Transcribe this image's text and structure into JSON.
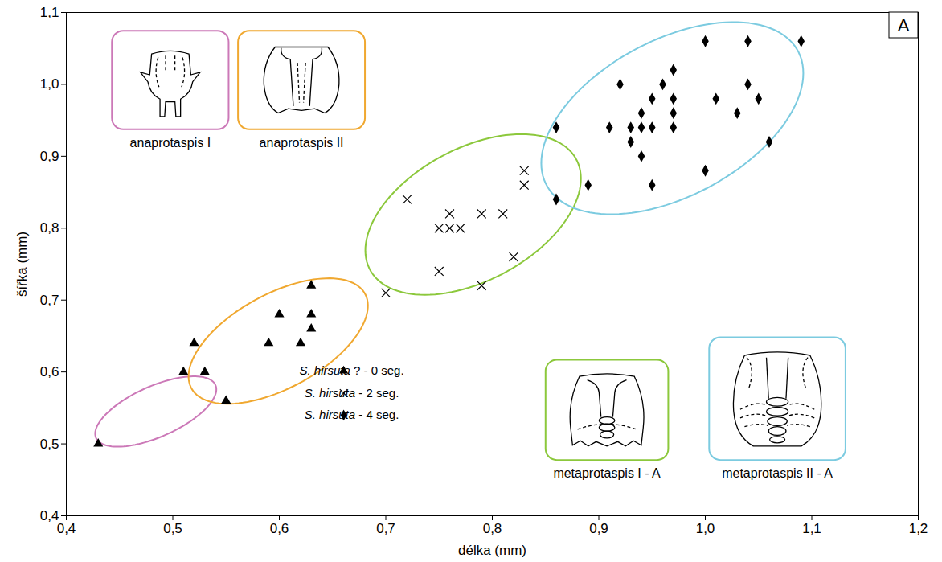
{
  "chart_data": {
    "type": "scatter",
    "x_label": "délka (mm)",
    "y_label": "šířka (mm)",
    "panel_label": "A",
    "xlim": [
      0.4,
      1.2
    ],
    "ylim": [
      0.4,
      1.1
    ],
    "xticks": [
      {
        "value": 0.4,
        "label": "0,4"
      },
      {
        "value": 0.5,
        "label": "0,5"
      },
      {
        "value": 0.6,
        "label": "0,6"
      },
      {
        "value": 0.7,
        "label": "0,7"
      },
      {
        "value": 0.8,
        "label": "0,8"
      },
      {
        "value": 0.9,
        "label": "0,9"
      },
      {
        "value": 1.0,
        "label": "1,0"
      },
      {
        "value": 1.1,
        "label": "1,1"
      },
      {
        "value": 1.2,
        "label": "1,2"
      }
    ],
    "yticks": [
      {
        "value": 0.4,
        "label": "0,4"
      },
      {
        "value": 0.5,
        "label": "0,5"
      },
      {
        "value": 0.6,
        "label": "0,6"
      },
      {
        "value": 0.7,
        "label": "0,7"
      },
      {
        "value": 0.8,
        "label": "0,8"
      },
      {
        "value": 0.9,
        "label": "0,9"
      },
      {
        "value": 1.0,
        "label": "1,0"
      },
      {
        "value": 1.1,
        "label": "1,1"
      }
    ],
    "grid": false,
    "legend": "bottom",
    "series": [
      {
        "name": "S. hirsuta ? - 0 seg.",
        "color": "#000000",
        "marker": "triangle",
        "x": [
          0.43,
          0.51,
          0.52,
          0.53,
          0.55,
          0.59,
          0.6,
          0.62,
          0.63,
          0.63,
          0.63
        ],
        "y": [
          0.5,
          0.6,
          0.64,
          0.6,
          0.56,
          0.64,
          0.68,
          0.64,
          0.72,
          0.68,
          0.66
        ]
      },
      {
        "name": "S. hirsuta - 2 seg.",
        "color": "#000000",
        "marker": "times",
        "x": [
          0.7,
          0.72,
          0.75,
          0.75,
          0.76,
          0.76,
          0.77,
          0.79,
          0.79,
          0.81,
          0.82,
          0.83,
          0.83
        ],
        "y": [
          0.71,
          0.84,
          0.8,
          0.74,
          0.8,
          0.82,
          0.8,
          0.82,
          0.72,
          0.82,
          0.76,
          0.88,
          0.86
        ]
      },
      {
        "name": "S. hirsuta - 4 seg.",
        "color": "#000000",
        "marker": "diamond",
        "x": [
          0.86,
          0.86,
          0.89,
          0.91,
          0.92,
          0.93,
          0.93,
          0.94,
          0.94,
          0.94,
          0.95,
          0.95,
          0.95,
          0.96,
          0.97,
          0.97,
          0.97,
          0.97,
          1.0,
          1.0,
          1.01,
          1.03,
          1.04,
          1.04,
          1.05,
          1.06,
          1.09
        ],
        "y": [
          0.94,
          0.84,
          0.86,
          0.94,
          1.0,
          0.94,
          0.92,
          0.96,
          0.94,
          0.9,
          0.98,
          0.94,
          0.86,
          1.0,
          1.02,
          0.98,
          0.96,
          0.94,
          1.06,
          0.88,
          0.98,
          0.96,
          1.06,
          1.0,
          0.98,
          0.92,
          1.06
        ]
      }
    ],
    "regions": [
      {
        "name": "anaprotaspis I",
        "color": "#cc79b8",
        "center": [
          0.484,
          0.545
        ],
        "axis_a": [
          0.056,
          0.037
        ],
        "axis_b": [
          0.01,
          -0.032
        ]
      },
      {
        "name": "anaprotaspis II",
        "color": "#f0a830",
        "center": [
          0.599,
          0.643
        ],
        "axis_a": [
          0.081,
          0.067
        ],
        "axis_b": [
          0.023,
          -0.056
        ]
      },
      {
        "name": "metaprotaspis I - A",
        "color": "#8cc83c",
        "center": [
          0.782,
          0.819
        ],
        "axis_a": [
          0.096,
          0.079
        ],
        "axis_b": [
          0.032,
          -0.079
        ]
      },
      {
        "name": "metaprotaspis II - A",
        "color": "#7ccbe0",
        "center": [
          0.969,
          0.953
        ],
        "axis_a": [
          0.117,
          0.096
        ],
        "axis_b": [
          0.038,
          -0.093
        ]
      }
    ]
  }
}
